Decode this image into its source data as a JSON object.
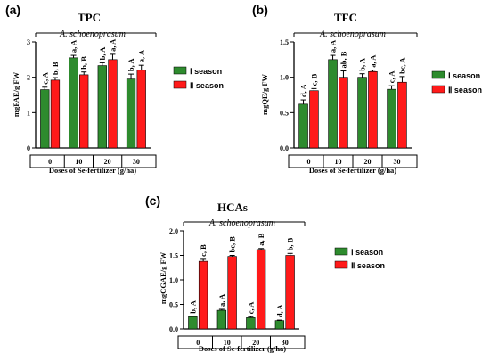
{
  "colors": {
    "season1": "#2e8b2e",
    "season2": "#ff1a1a",
    "axis": "#000000"
  },
  "chart_data": [
    {
      "type": "bar",
      "panel_label": "(a)",
      "title": "TPC",
      "species": "A. schoenoprasum",
      "ylabel": "mgFAE/g FW",
      "xlabel": "Doses of Se-fertilizer (g/ha)",
      "categories": [
        "0",
        "10",
        "20",
        "30"
      ],
      "ylim": [
        0,
        3
      ],
      "yticks": [
        "0",
        "1",
        "2",
        "3"
      ],
      "series": [
        {
          "name": "Ⅰ season",
          "values": [
            1.65,
            2.55,
            2.33,
            1.95
          ],
          "errors": [
            0.07,
            0.07,
            0.08,
            0.14
          ],
          "labels": [
            "c, A",
            "a, A",
            "b, A",
            "b, A"
          ]
        },
        {
          "name": "Ⅱ season",
          "values": [
            1.92,
            2.07,
            2.5,
            2.2
          ],
          "errors": [
            0.07,
            0.08,
            0.15,
            0.14
          ],
          "labels": [
            "b, B",
            "b, B",
            "a, A",
            "a, A"
          ]
        }
      ]
    },
    {
      "type": "bar",
      "panel_label": "(b)",
      "title": "TFC",
      "species": "A. schoenoprasum",
      "ylabel": "mgQE/g FW",
      "xlabel": "Doses of Se-fertilizer (g/ha)",
      "categories": [
        "0",
        "10",
        "20",
        "30"
      ],
      "ylim": [
        0,
        1.5
      ],
      "yticks": [
        "0.0",
        "0.5",
        "1.0",
        "1.5"
      ],
      "series": [
        {
          "name": "Ⅰ season",
          "values": [
            0.62,
            1.25,
            1.0,
            0.83
          ],
          "errors": [
            0.06,
            0.06,
            0.05,
            0.05
          ],
          "labels": [
            "d, A",
            "a, A",
            "b, A",
            "c, A"
          ]
        },
        {
          "name": "Ⅱ season",
          "values": [
            0.81,
            1.0,
            1.08,
            0.93
          ],
          "errors": [
            0.03,
            0.09,
            0.02,
            0.08
          ],
          "labels": [
            "c, B",
            "ab, B",
            "a, A",
            "bc, A"
          ]
        }
      ]
    },
    {
      "type": "bar",
      "panel_label": "(c)",
      "title": "HCAs",
      "species": "A. schoenoprasum",
      "ylabel": "mgCGAE/g FW",
      "xlabel": "Doses of Se-fertilizer (g/ha)",
      "categories": [
        "0",
        "10",
        "20",
        "30"
      ],
      "ylim": [
        0,
        2.0
      ],
      "yticks": [
        "0.0",
        "0.5",
        "1.0",
        "1.5",
        "2.0"
      ],
      "series": [
        {
          "name": "Ⅰ season",
          "values": [
            0.25,
            0.38,
            0.23,
            0.17
          ],
          "errors": [
            0.01,
            0.02,
            0.02,
            0.01
          ],
          "labels": [
            "b, A",
            "a, A",
            "c, A",
            "d, A"
          ]
        },
        {
          "name": "Ⅱ season",
          "values": [
            1.38,
            1.48,
            1.62,
            1.5
          ],
          "errors": [
            0.04,
            0.02,
            0.02,
            0.04
          ],
          "labels": [
            "c, B",
            "bc, B",
            "a, B",
            "b, B"
          ]
        }
      ]
    }
  ]
}
